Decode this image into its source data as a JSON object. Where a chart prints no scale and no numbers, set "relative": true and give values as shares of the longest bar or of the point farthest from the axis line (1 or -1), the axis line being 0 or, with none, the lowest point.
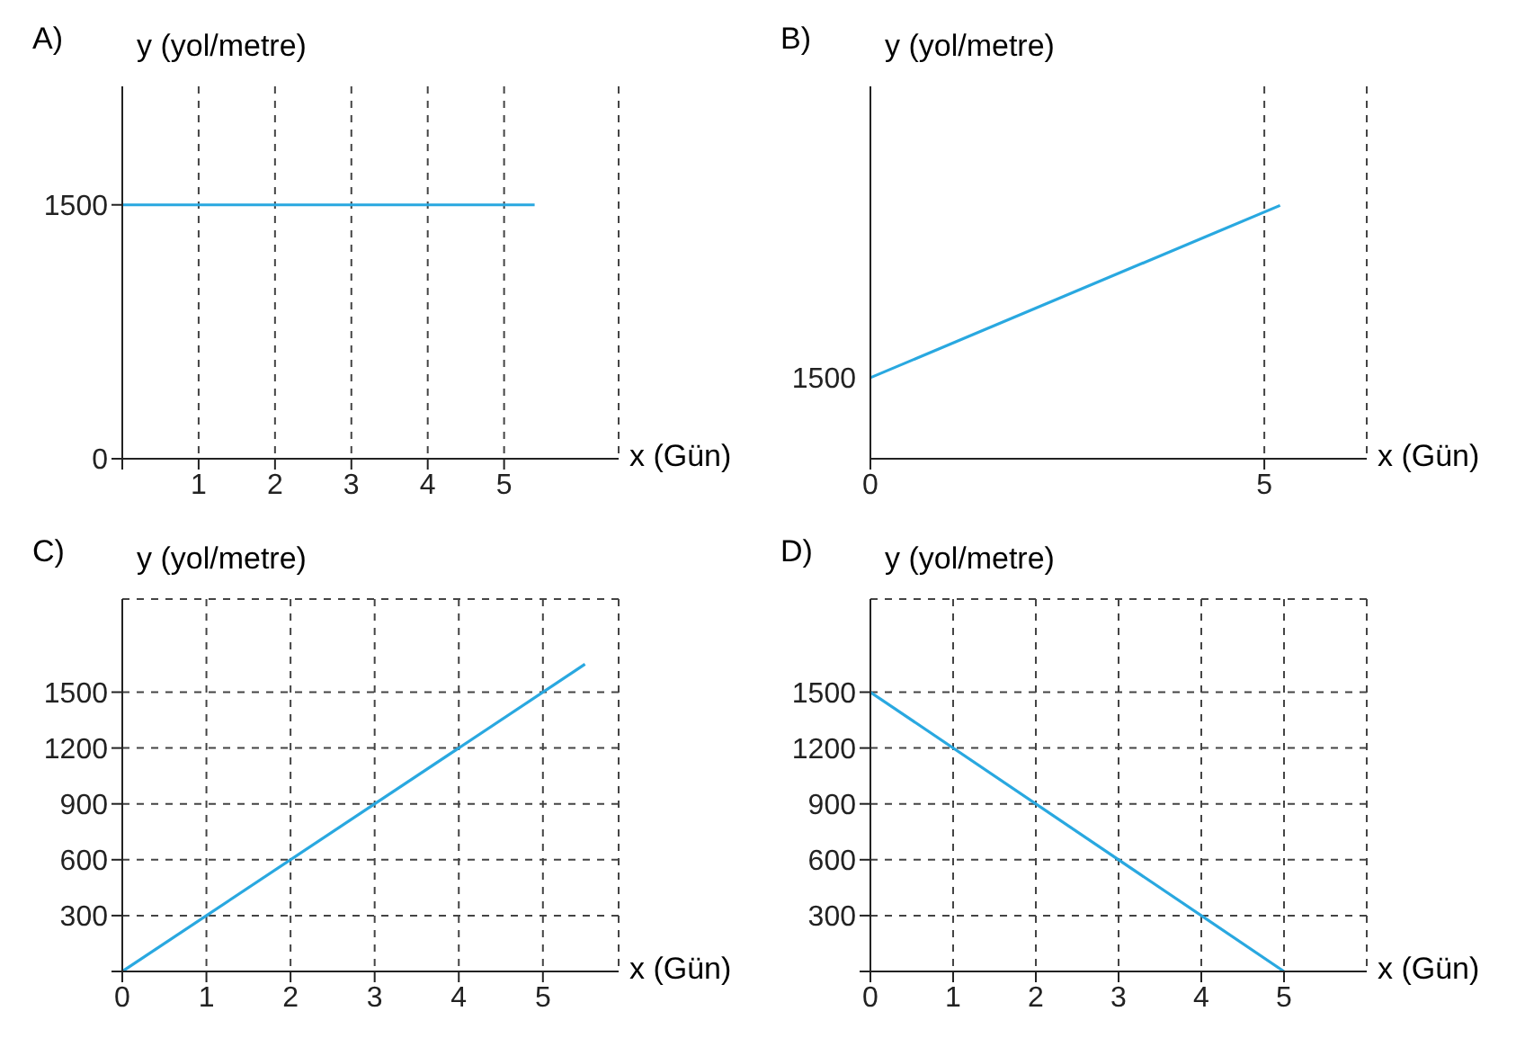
{
  "chart_data": [
    {
      "type": "line",
      "title": "A)",
      "xlabel": "x (Gün)",
      "ylabel": "y (yol/metre)",
      "x": [
        0,
        5.4
      ],
      "series": [
        {
          "color": "#29a8e0",
          "values": [
            1500,
            1500
          ]
        }
      ],
      "xlim": [
        0,
        6.5
      ],
      "xticks": [
        {
          "value": 0,
          "label": null
        },
        1,
        2,
        3,
        4,
        5
      ],
      "ylim": [
        0,
        2200
      ],
      "yticks": [
        0,
        1500
      ],
      "grid": "x",
      "line_style": "solid"
    },
    {
      "type": "line",
      "title": "B)",
      "xlabel": "x (Gün)",
      "ylabel": "y (yol/metre)",
      "relative": true,
      "x": [
        0,
        5.2
      ],
      "series": [
        {
          "color": "#29a8e0",
          "values": [
            0.32,
            1
          ]
        }
      ],
      "annotations": [
        {
          "text": "1500",
          "x": 0,
          "y": 0.32
        }
      ],
      "xlim": [
        0,
        6.3
      ],
      "xticks": [
        0,
        5
      ],
      "grid": "x",
      "line_style": "solid"
    },
    {
      "type": "line",
      "title": "C)",
      "xlabel": "x (Gün)",
      "ylabel": "y (yol/metre)",
      "x": [
        0,
        5.5
      ],
      "series": [
        {
          "color": "#29a8e0",
          "values": [
            0,
            1650
          ]
        }
      ],
      "xlim": [
        0,
        5.9
      ],
      "xticks": [
        0,
        1,
        2,
        3,
        4,
        5
      ],
      "ylim": [
        0,
        2000
      ],
      "yticks": [
        {
          "value": 0,
          "label": null
        },
        300,
        600,
        900,
        1200,
        1500
      ],
      "grid": true,
      "line_style": "solid"
    },
    {
      "type": "line",
      "title": "D)",
      "xlabel": "x (Gün)",
      "ylabel": "y (yol/metre)",
      "x": [
        0,
        5
      ],
      "series": [
        {
          "color": "#29a8e0",
          "values": [
            1500,
            0
          ]
        }
      ],
      "xlim": [
        0,
        6
      ],
      "xticks": [
        0,
        1,
        2,
        3,
        4,
        5
      ],
      "ylim": [
        0,
        2000
      ],
      "yticks": [
        {
          "value": 0,
          "label": null
        },
        300,
        600,
        900,
        1200,
        1500
      ],
      "grid": true,
      "line_style": "solid"
    }
  ]
}
